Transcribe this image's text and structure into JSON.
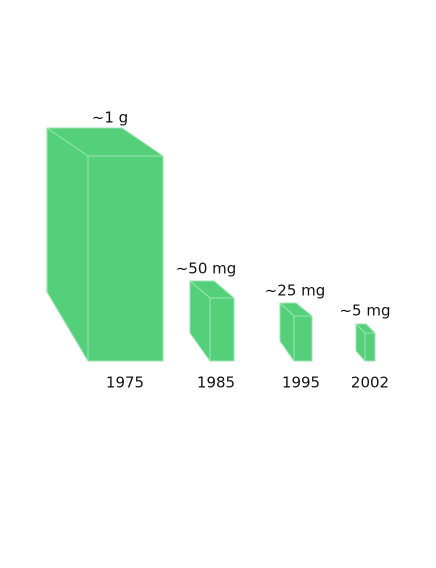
{
  "items": [
    {
      "label": "~1 g",
      "year": "1975"
    },
    {
      "label": "~50 mg",
      "year": "1985"
    },
    {
      "label": "~25 mg",
      "year": "1995"
    },
    {
      "label": "~5 mg",
      "year": "2002"
    }
  ]
}
